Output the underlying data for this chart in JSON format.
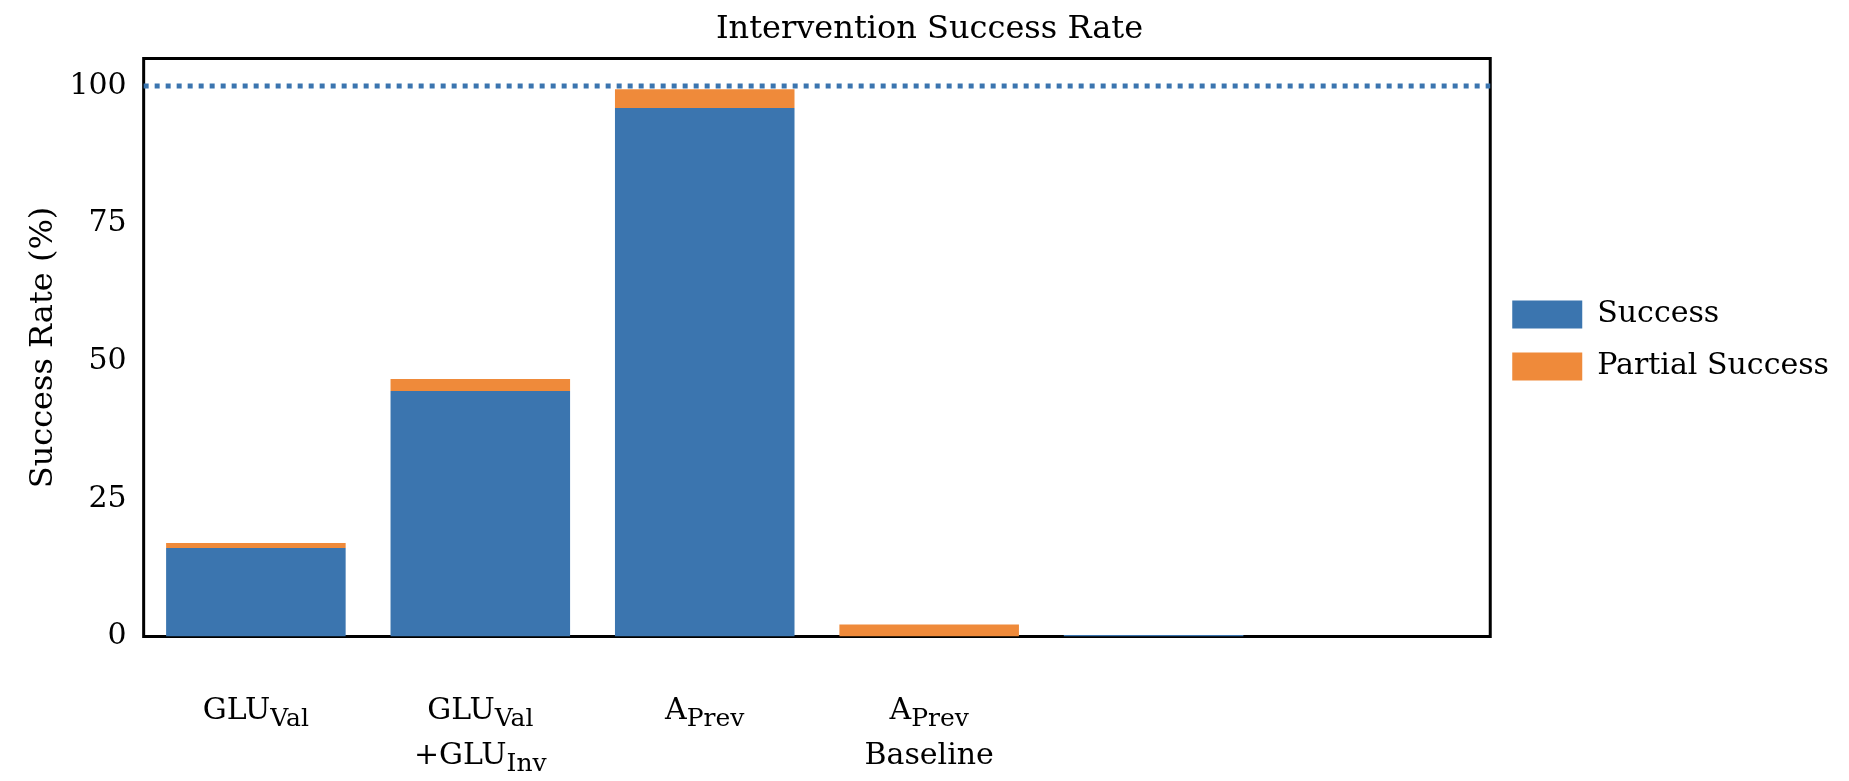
{
  "chart_data": {
    "type": "bar",
    "title": "Intervention Success Rate",
    "ylabel": "Success Rate (%)",
    "categories": [
      "GLU$_{Val}$",
      "GLU$_{Val}$\n+GLU$_{Inv}$",
      "A$_{Prev}$",
      "A$_{Prev}$\nBaseline",
      null,
      null
    ],
    "stacked": true,
    "series": [
      {
        "name": "Success",
        "color": "#3b75af",
        "values": [
          16.1,
          44.6,
          96,
          0,
          0.3,
          0
        ]
      },
      {
        "name": "Partial Success",
        "color": "#ef8a3a",
        "values": [
          0.9,
          2.2,
          3.4,
          2.2,
          0,
          0
        ]
      }
    ],
    "ylim": [
      0,
      105
    ],
    "yticks": [
      0,
      25,
      50,
      75,
      100
    ],
    "grid": false,
    "legend": "right",
    "ref_lines": [
      {
        "axis": "y",
        "value": 100,
        "color": "#3b75af",
        "line_style": "dotted"
      }
    ]
  }
}
